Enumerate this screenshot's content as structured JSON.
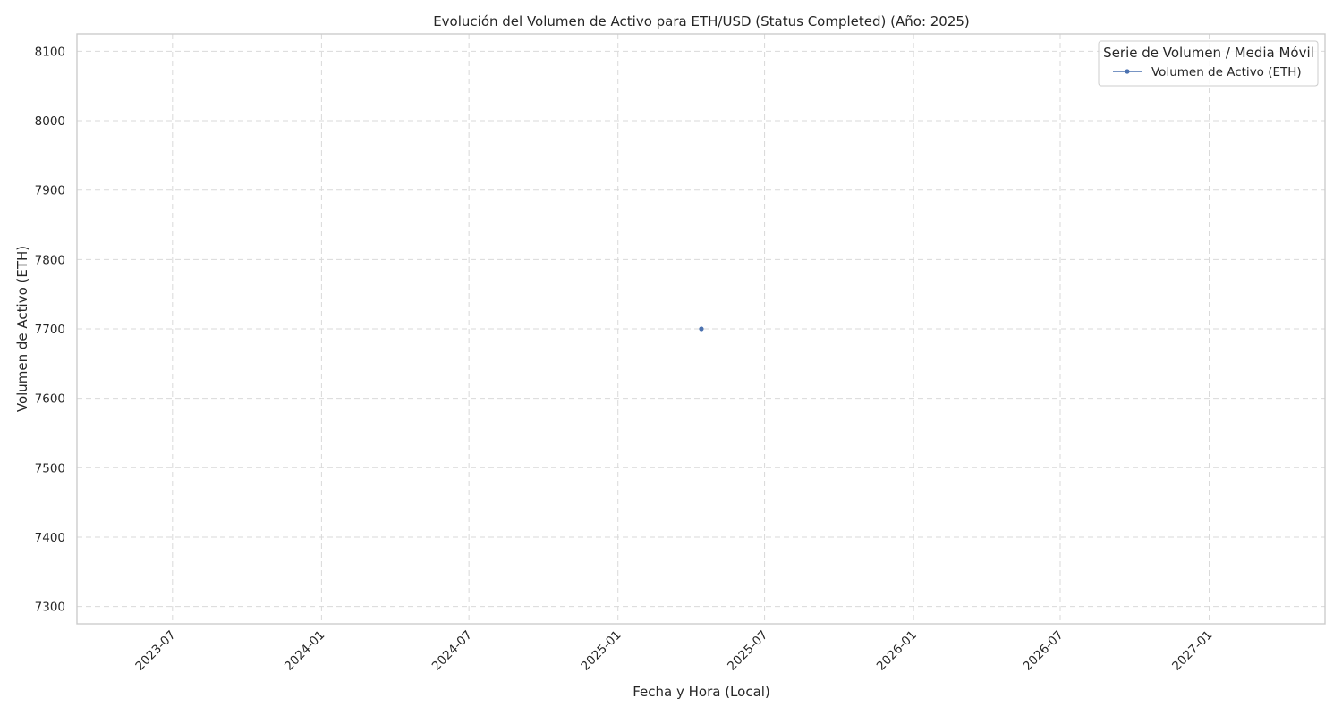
{
  "chart_data": {
    "type": "line",
    "title": "Evolución del Volumen de Activo para ETH/USD (Status Completed) (Año: 2025)",
    "xlabel": "Fecha y Hora (Local)",
    "ylabel": "Volumen de Activo (ETH)",
    "x_range": [
      "2023-03-05",
      "2027-05-24"
    ],
    "ylim": [
      7275,
      8125
    ],
    "x_ticks": [
      "2023-07",
      "2024-01",
      "2024-07",
      "2025-01",
      "2025-07",
      "2026-01",
      "2026-07",
      "2027-01"
    ],
    "y_ticks": [
      7300,
      7400,
      7500,
      7600,
      7700,
      7800,
      7900,
      8000,
      8100
    ],
    "grid": true,
    "legend": {
      "title": "Serie de Volumen / Media Móvil",
      "placement": "top-right"
    },
    "series": [
      {
        "name": "Volumen de Activo (ETH)",
        "color": "#4c72b0",
        "points": [
          {
            "x": "2025-04-14",
            "y": 7700
          }
        ]
      }
    ]
  }
}
